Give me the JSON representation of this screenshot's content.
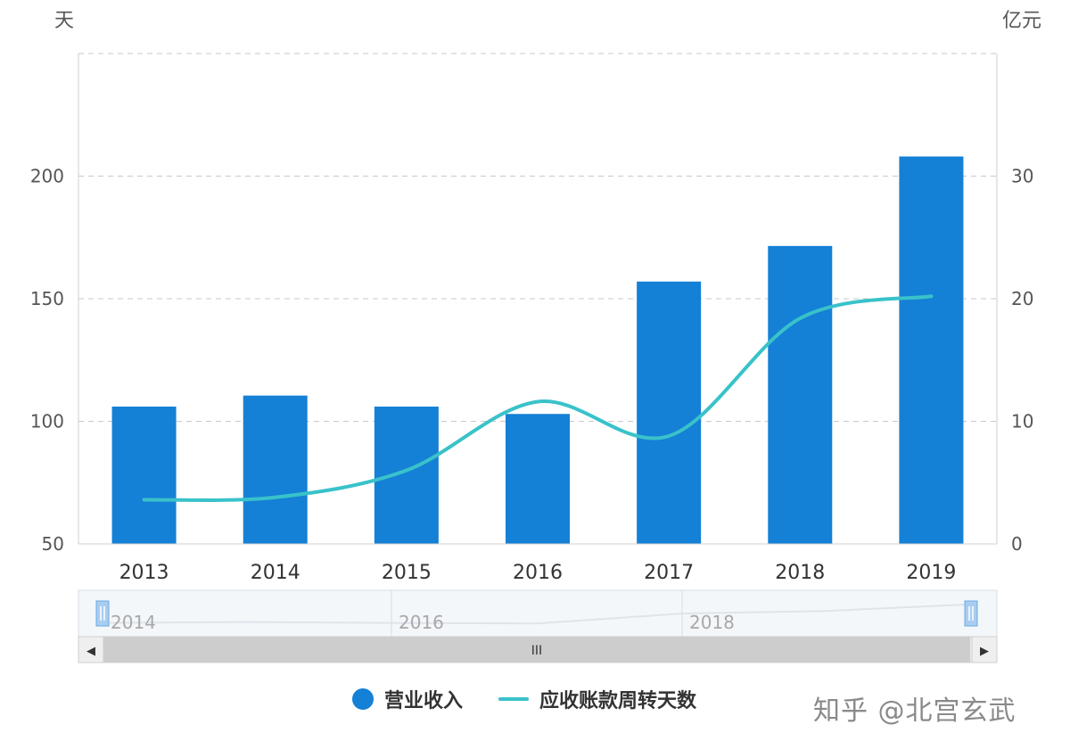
{
  "chart_data": {
    "type": "bar",
    "categories": [
      "2013",
      "2014",
      "2015",
      "2016",
      "2017",
      "2018",
      "2019"
    ],
    "series": [
      {
        "name": "营业收入",
        "type": "bar",
        "axis": "right",
        "values": [
          11.2,
          12.1,
          11.2,
          10.6,
          21.4,
          24.3,
          31.6
        ]
      },
      {
        "name": "应收账款周转天数",
        "type": "line",
        "axis": "left",
        "values": [
          68,
          69,
          80,
          108,
          94,
          142,
          151
        ]
      }
    ],
    "left_axis": {
      "unit_label": "天",
      "range": [
        50,
        250
      ],
      "ticks": [
        "50",
        "100",
        "150",
        "200"
      ]
    },
    "right_axis": {
      "unit_label": "亿元",
      "range": [
        0,
        40
      ],
      "ticks": [
        "0",
        "10",
        "20",
        "30"
      ]
    },
    "grid": true,
    "legend_position": "bottom"
  },
  "colors": {
    "bar": "#1480d6",
    "line": "#39c2c9",
    "grid": "#c8c8c8",
    "axis_text": "#555555"
  },
  "zoom_slider": {
    "labels": [
      "2014",
      "2016",
      "2018"
    ],
    "thumb_glyph": "III",
    "left_arrow": "◀",
    "right_arrow": "▶"
  },
  "watermark": "知乎 @北宫玄武"
}
